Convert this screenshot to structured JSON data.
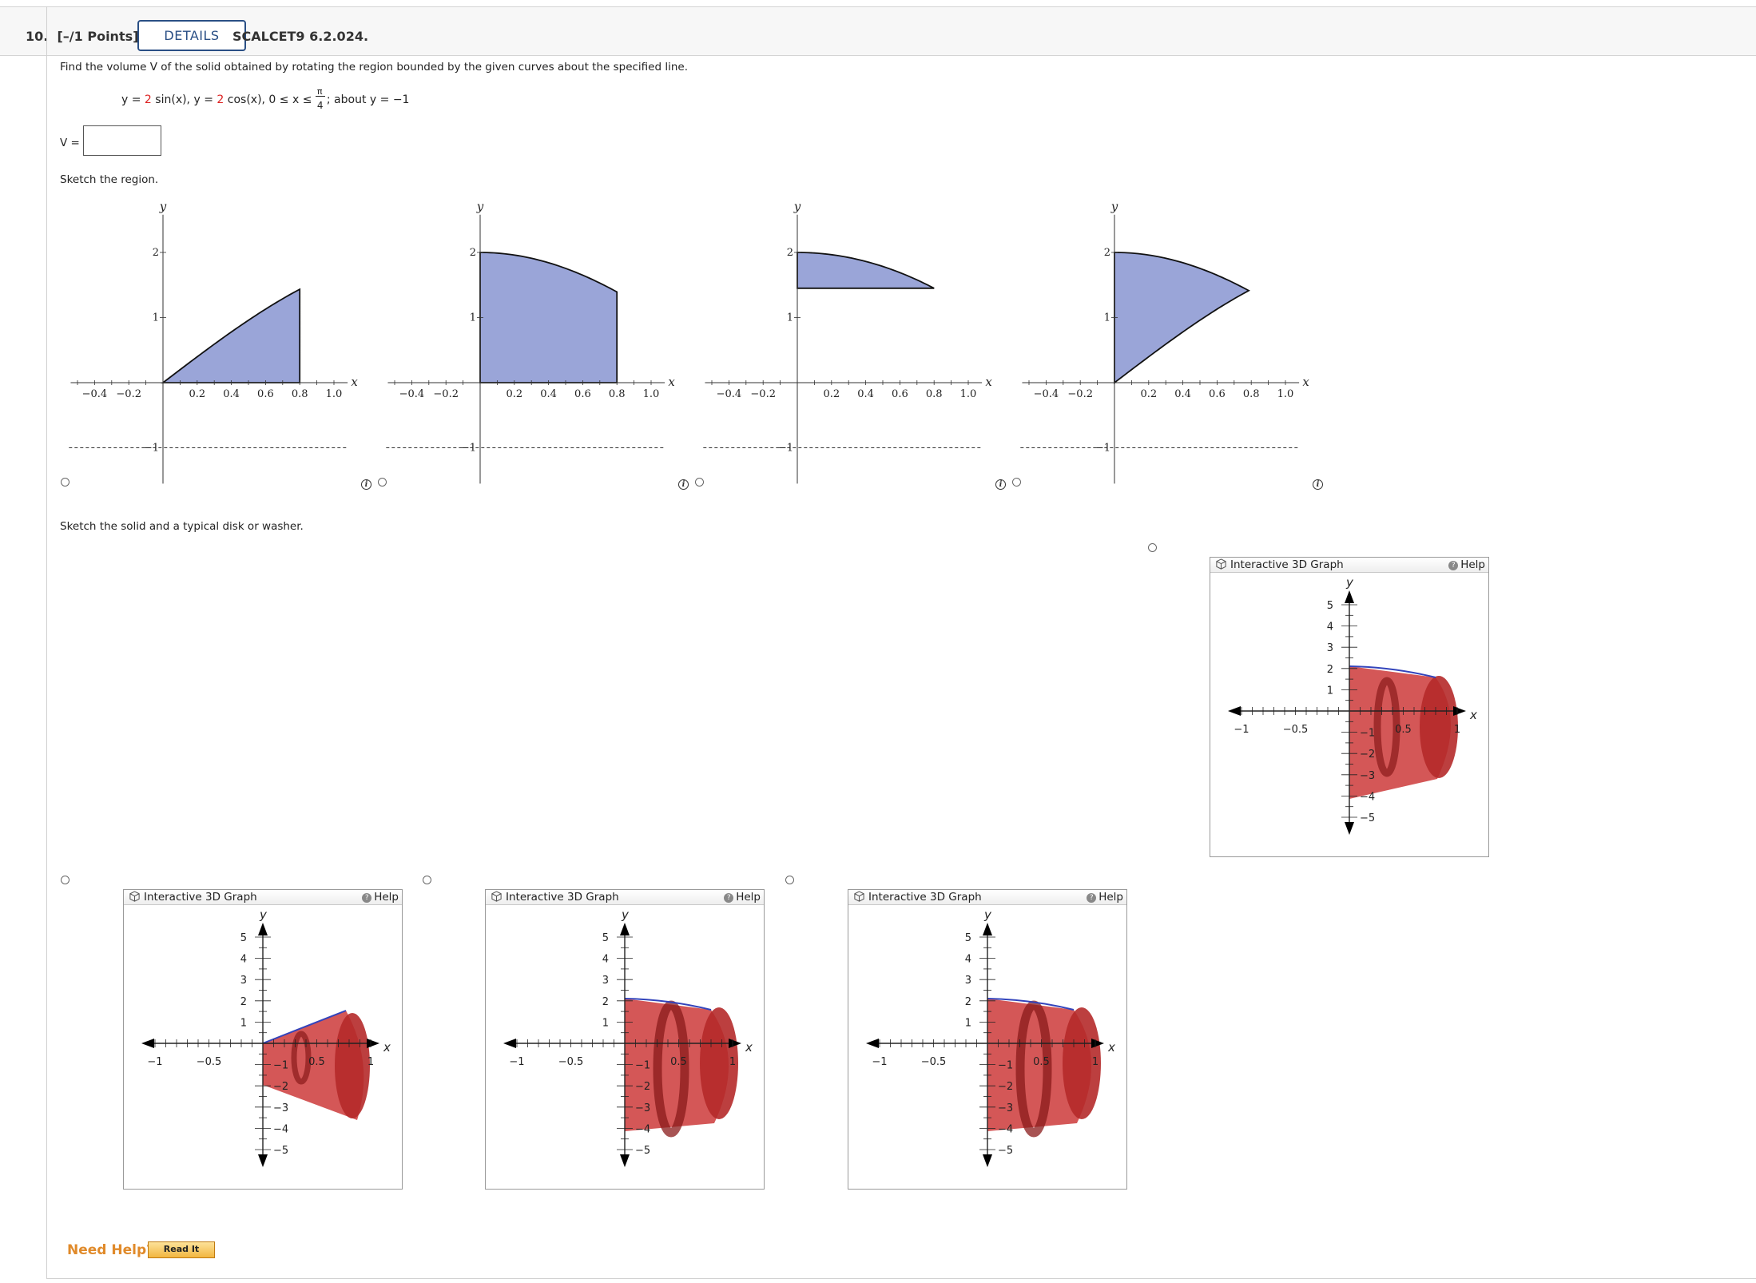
{
  "header": {
    "question_number": "10.",
    "points": "[–/1 Points]",
    "details_label": "DETAILS",
    "code": "SCALCET9 6.2.024."
  },
  "question": {
    "prompt": "Find the volume V of the solid obtained by rotating the region bounded by the given curves about the specified line.",
    "equation": {
      "y1_left": "y = ",
      "y1_coef": "2",
      "y1_fn": " sin(x),  y = ",
      "y2_coef": "2",
      "y2_fn": " cos(x),  0 ≤ x ≤ ",
      "pi": "π",
      "four": "4",
      "about": ";  about y = −1"
    },
    "answer_label": "V =",
    "answer_value": "",
    "sketch_region_label": "Sketch the region.",
    "sketch_solid_label": "Sketch the solid and a typical disk or washer."
  },
  "region_graph_axes": {
    "y_label": "y",
    "x_label": "x",
    "x_ticks": [
      "−0.4",
      "−0.2",
      "0.2",
      "0.4",
      "0.6",
      "0.8",
      "1.0"
    ],
    "y_ticks": [
      "1",
      "2"
    ],
    "y_tick_neg": "−1"
  },
  "region_graphs": [
    {
      "shape": "under-sin"
    },
    {
      "shape": "under-cos"
    },
    {
      "shape": "cos-above-1"
    },
    {
      "shape": "between-sin-cos"
    }
  ],
  "solid_panel": {
    "title": "Interactive 3D Graph",
    "help": "Help",
    "x_label": "x",
    "y_label": "y",
    "x_ticks": [
      "−1",
      "−0.5",
      "0.5",
      "1"
    ],
    "y_pos_ticks": [
      "5",
      "4",
      "3",
      "2",
      "1"
    ],
    "y_neg_ticks": [
      "−1",
      "−2",
      "−3",
      "−4",
      "−5"
    ]
  },
  "footer": {
    "need_help": "Need Help?",
    "read_it": "Read It"
  },
  "colors": {
    "region_fill": "#9aa5d8",
    "solid_red": "#cc3a3a",
    "accent_blue": "#2a4f85",
    "need_help_orange": "#e08a2a"
  }
}
